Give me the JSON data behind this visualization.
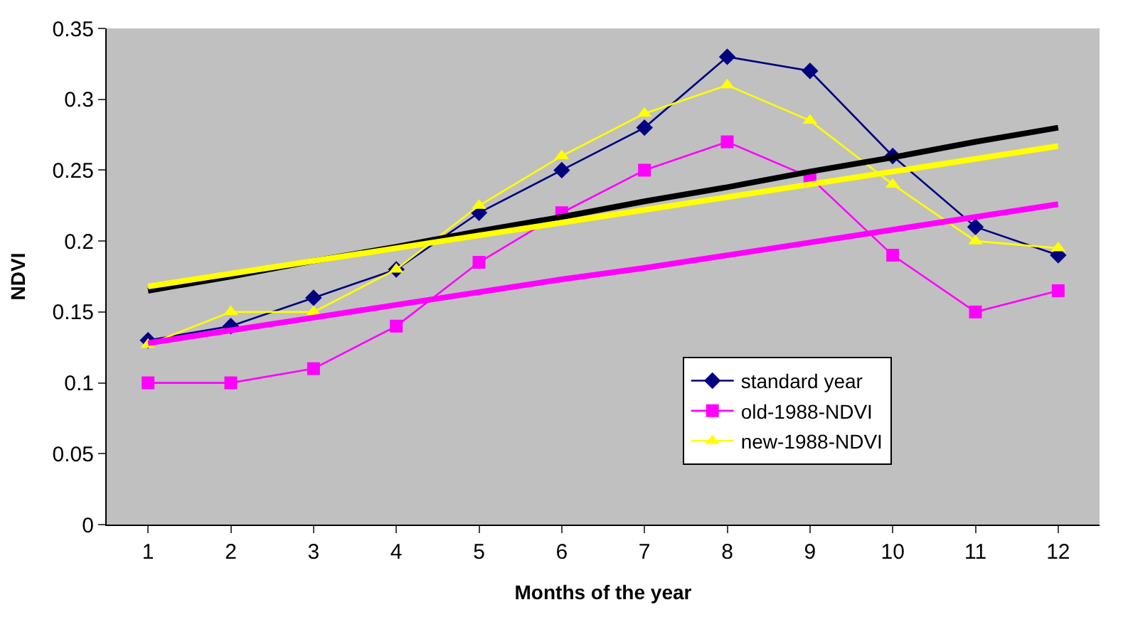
{
  "chart_data": {
    "type": "line",
    "xlabel": "Months of the year",
    "ylabel": "NDVI",
    "x": [
      1,
      2,
      3,
      4,
      5,
      6,
      7,
      8,
      9,
      10,
      11,
      12
    ],
    "xlim": [
      0.5,
      12.5
    ],
    "xticks": [
      1,
      2,
      3,
      4,
      5,
      6,
      7,
      8,
      9,
      10,
      11,
      12
    ],
    "ylim": [
      0,
      0.35
    ],
    "yticks": [
      0,
      0.05,
      0.1,
      0.15,
      0.2,
      0.25,
      0.3,
      0.35
    ],
    "grid": false,
    "legend": "bottom right",
    "series": [
      {
        "name": "standard year",
        "color": "#000080",
        "marker": "diamond",
        "values": [
          0.13,
          0.14,
          0.16,
          0.18,
          0.22,
          0.25,
          0.28,
          0.33,
          0.32,
          0.26,
          0.21,
          0.19
        ]
      },
      {
        "name": "old-1988-NDVI",
        "color": "#ff00ff",
        "marker": "square",
        "values": [
          0.1,
          0.1,
          0.11,
          0.14,
          0.185,
          0.22,
          0.25,
          0.27,
          0.245,
          0.19,
          0.15,
          0.165
        ]
      },
      {
        "name": "new-1988-NDVI",
        "color": "#ffff00",
        "marker": "triangle",
        "values": [
          0.127,
          0.15,
          0.15,
          0.18,
          0.225,
          0.26,
          0.29,
          0.31,
          0.285,
          0.24,
          0.2,
          0.195
        ]
      },
      {
        "color": "#000000",
        "marker": "none",
        "values": [
          0.165,
          0.175,
          0.186,
          0.196,
          0.207,
          0.217,
          0.228,
          0.238,
          0.249,
          0.259,
          0.27,
          0.28
        ]
      },
      {
        "color": "#ffff00",
        "marker": "none",
        "values": [
          0.168,
          0.177,
          0.186,
          0.195,
          0.204,
          0.213,
          0.222,
          0.231,
          0.24,
          0.249,
          0.258,
          0.267
        ]
      },
      {
        "color": "#ff00ff",
        "marker": "none",
        "values": [
          0.128,
          0.137,
          0.146,
          0.155,
          0.164,
          0.173,
          0.181,
          0.19,
          0.199,
          0.208,
          0.217,
          0.226
        ]
      }
    ]
  }
}
